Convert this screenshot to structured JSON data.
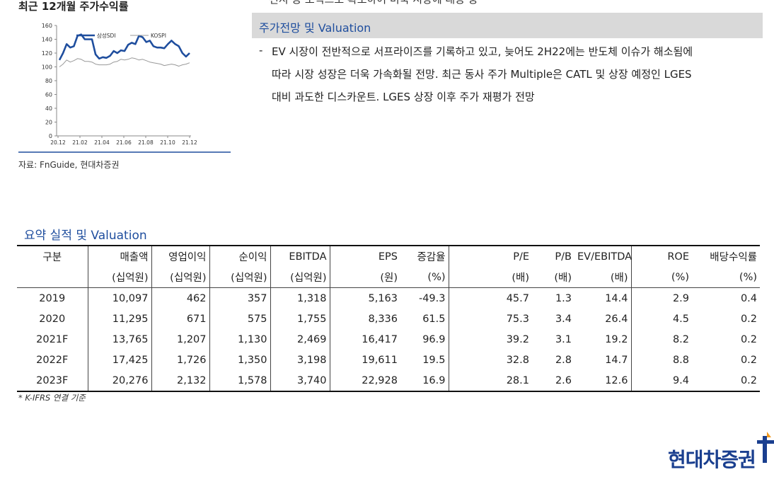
{
  "chart": {
    "title": "최근 12개월 주가수익률",
    "source": "자료: FnGuide, 현대차증권",
    "chart_data": {
      "type": "line",
      "title": "최근 12개월 주가수익률",
      "yticks": [
        0,
        20,
        40,
        60,
        80,
        100,
        120,
        140,
        160
      ],
      "ylim": [
        0,
        160
      ],
      "x_tick_labels": [
        "20.12",
        "21.02",
        "21.04",
        "21.06",
        "21.08",
        "21.10",
        "21.12"
      ],
      "legend": "top-center",
      "grid": false,
      "series": [
        {
          "name": "삼성SDI",
          "color": "#1f4e9e",
          "values": [
            110,
            120,
            133,
            128,
            130,
            145,
            147,
            140,
            140,
            140,
            118,
            112,
            114,
            113,
            116,
            123,
            120,
            124,
            123,
            132,
            135,
            133,
            145,
            143,
            136,
            138,
            130,
            128,
            128,
            127,
            133,
            138,
            133,
            130,
            120,
            115,
            120
          ]
        },
        {
          "name": "KOSPI",
          "color": "#999999",
          "values": [
            100,
            104,
            110,
            107,
            109,
            112,
            111,
            108,
            108,
            107,
            104,
            103,
            103,
            103,
            104,
            107,
            108,
            111,
            110,
            111,
            113,
            112,
            110,
            111,
            109,
            107,
            106,
            105,
            104,
            102,
            103,
            104,
            103,
            101,
            103,
            104,
            106
          ]
        }
      ]
    }
  },
  "outlook": {
    "cutoff_line": "전지 등 포직으로 확보하여 미국 시장에 대응 중",
    "heading": "주가전망 및 Valuation",
    "dash": "-",
    "lines": [
      "EV 시장이 전반적으로 서프라이즈를 기록하고 있고, 늦어도 2H22에는 반도체 이슈가 해소됨에",
      "따라 시장 성장은 더욱 가속화될 전망. 최근 동사 주가 Multiple은 CATL 및 상장 예정인 LGES",
      "대비 과도한 디스카운트. LGES 상장 이후 주가 재평가 전망"
    ]
  },
  "table": {
    "title": "요약 실적 및 Valuation",
    "headers": [
      "구분",
      "매출액",
      "영업이익",
      "순이익",
      "EBITDA",
      "EPS",
      "증감율",
      "P/E",
      "P/B",
      "EV/EBITDA",
      "ROE",
      "배당수익률"
    ],
    "units": [
      "",
      "(십억원)",
      "(십억원)",
      "(십억원)",
      "(십억원)",
      "(원)",
      "(%)",
      "(배)",
      "(배)",
      "(배)",
      "(%)",
      "(%)"
    ],
    "rows": [
      [
        "2019",
        "10,097",
        "462",
        "357",
        "1,318",
        "5,163",
        "-49.3",
        "45.7",
        "1.3",
        "14.4",
        "2.9",
        "0.4"
      ],
      [
        "2020",
        "11,295",
        "671",
        "575",
        "1,755",
        "8,336",
        "61.5",
        "75.3",
        "3.4",
        "26.4",
        "4.5",
        "0.2"
      ],
      [
        "2021F",
        "13,765",
        "1,207",
        "1,130",
        "2,469",
        "16,417",
        "96.9",
        "39.2",
        "3.1",
        "19.2",
        "8.2",
        "0.2"
      ],
      [
        "2022F",
        "17,425",
        "1,726",
        "1,350",
        "3,198",
        "19,611",
        "19.5",
        "32.8",
        "2.8",
        "14.7",
        "8.8",
        "0.2"
      ],
      [
        "2023F",
        "20,276",
        "2,132",
        "1,578",
        "3,740",
        "22,928",
        "16.9",
        "28.1",
        "2.6",
        "12.6",
        "9.4",
        "0.2"
      ]
    ],
    "note": "* K-IFRS 연결 기준"
  },
  "logo": {
    "text": "현대차증권",
    "mark_colors": [
      "#1a3f8f",
      "#f29a1f"
    ]
  }
}
